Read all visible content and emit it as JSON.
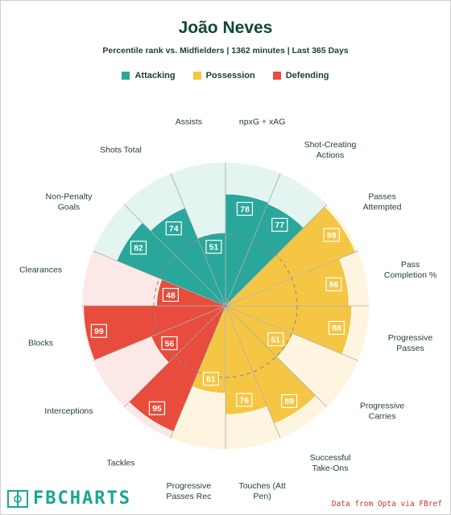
{
  "title": "João Neves",
  "subtitle": "Percentile rank vs. Midfielders | 1362 minutes | Last 365 Days",
  "legend": [
    {
      "label": "Attacking",
      "color": "#2aa79b"
    },
    {
      "label": "Possession",
      "color": "#f5c644"
    },
    {
      "label": "Defending",
      "color": "#e74c3c"
    }
  ],
  "colors": {
    "attacking_fill": "#2aa79b",
    "attacking_bg": "#e4f4f1",
    "possession_fill": "#f5c644",
    "possession_bg": "#fdf5df",
    "defending_fill": "#e74c3c",
    "defending_bg": "#fce9e7",
    "label_text": "#1f3d33"
  },
  "chart_data": {
    "type": "radar-bar",
    "range": [
      0,
      100
    ],
    "metrics": [
      {
        "label": "npxG + xAG",
        "value": 78,
        "group": "attacking"
      },
      {
        "label": "Shot-Creating Actions",
        "value": 77,
        "group": "attacking"
      },
      {
        "label": "Passes Attempted",
        "value": 98,
        "group": "possession"
      },
      {
        "label": "Pass Completion %",
        "value": 86,
        "group": "possession"
      },
      {
        "label": "Progressive Passes",
        "value": 88,
        "group": "possession"
      },
      {
        "label": "Progressive Carries",
        "value": 51,
        "group": "possession"
      },
      {
        "label": "Successful Take-Ons",
        "value": 89,
        "group": "possession"
      },
      {
        "label": "Touches (Att Pen)",
        "value": 76,
        "group": "possession"
      },
      {
        "label": "Progressive Passes Rec",
        "value": 61,
        "group": "possession"
      },
      {
        "label": "Tackles",
        "value": 95,
        "group": "defending"
      },
      {
        "label": "Interceptions",
        "value": 56,
        "group": "defending"
      },
      {
        "label": "Blocks",
        "value": 99,
        "group": "defending"
      },
      {
        "label": "Clearances",
        "value": 48,
        "group": "defending"
      },
      {
        "label": "Non-Penalty Goals",
        "value": 82,
        "group": "attacking"
      },
      {
        "label": "Shots Total",
        "value": 74,
        "group": "attacking"
      },
      {
        "label": "Assists",
        "value": 51,
        "group": "attacking"
      }
    ]
  },
  "footer": {
    "logo_text": "FBCHARTS",
    "logo_icon": "pitch-icon",
    "credit": "Data from Opta via FBref"
  }
}
